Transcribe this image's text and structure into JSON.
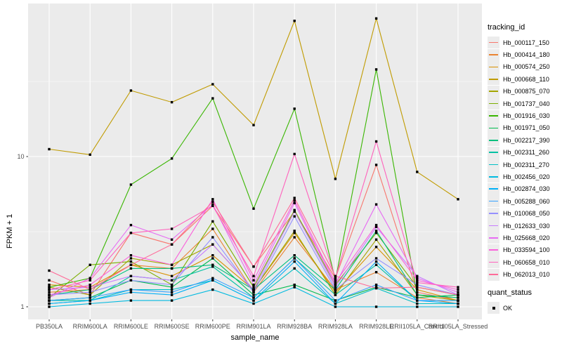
{
  "figure": {
    "background": "#ffffff",
    "panel_background": "#ebebeb",
    "grid_color": "#ffffff",
    "tick_color": "#333333",
    "tick_label_color": "#4d4d4d",
    "marker_color": "#000000"
  },
  "chart_data": {
    "type": "line",
    "xlabel": "sample_name",
    "ylabel": "FPKM + 1",
    "y_scale": "log10",
    "y_ticks": [
      1,
      10
    ],
    "y_minor_ticks": [
      3.162,
      31.62
    ],
    "ylim": [
      0.82,
      103
    ],
    "grid": true,
    "legend_position": "right",
    "marker": "filled-square",
    "categories": [
      "PB350LA",
      "RRIM600LA",
      "RRIM600LE",
      "RRIM600SE",
      "RRIM600PE",
      "RRIM901LA",
      "RRIM928BA",
      "RRIM928LA",
      "RRIM928LE",
      "RRII105LA_Control",
      "RRII105LA_Stressed"
    ],
    "series": [
      {
        "name": "Hb_000117_150",
        "color": "#F8766D",
        "values": [
          1.5,
          1.2,
          3.1,
          2.6,
          4.7,
          1.85,
          4.3,
          1.55,
          8.8,
          1.25,
          1.1
        ]
      },
      {
        "name": "Hb_000414_180",
        "color": "#EA8331",
        "values": [
          1.25,
          1.3,
          1.9,
          1.8,
          3.3,
          1.25,
          2.9,
          1.3,
          1.7,
          1.15,
          1.05
        ]
      },
      {
        "name": "Hb_000574_250",
        "color": "#D89000",
        "values": [
          1.4,
          1.35,
          1.9,
          1.6,
          2.2,
          1.3,
          3.1,
          1.25,
          2.5,
          1.3,
          1.1
        ]
      },
      {
        "name": "Hb_000668_110",
        "color": "#C09B00",
        "values": [
          11.2,
          10.3,
          27.5,
          23.0,
          30.3,
          16.2,
          80.0,
          7.1,
          83.0,
          7.9,
          5.2
        ]
      },
      {
        "name": "Hb_000875_070",
        "color": "#A3A500",
        "values": [
          1.35,
          1.2,
          2.1,
          1.9,
          2.6,
          1.3,
          3.2,
          1.2,
          2.8,
          1.2,
          1.1
        ]
      },
      {
        "name": "Hb_001737_040",
        "color": "#7CAE00",
        "values": [
          1.15,
          1.9,
          2.0,
          1.4,
          3.7,
          1.35,
          4.4,
          1.4,
          3.1,
          1.35,
          1.2
        ]
      },
      {
        "name": "Hb_001916_030",
        "color": "#39B600",
        "values": [
          1.35,
          1.55,
          6.5,
          9.7,
          24.4,
          4.5,
          20.8,
          1.5,
          38.0,
          1.2,
          1.15
        ]
      },
      {
        "name": "Hb_001971_050",
        "color": "#00BB4E",
        "values": [
          1.1,
          1.15,
          1.5,
          1.35,
          2.1,
          1.2,
          1.4,
          1.1,
          1.35,
          1.15,
          1.2
        ]
      },
      {
        "name": "Hb_002217_390",
        "color": "#00BF7D",
        "values": [
          1.2,
          1.3,
          1.8,
          1.8,
          1.9,
          1.3,
          2.2,
          1.3,
          3.2,
          1.2,
          1.15
        ]
      },
      {
        "name": "Hb_002311_260",
        "color": "#00C1A3",
        "values": [
          1.1,
          1.1,
          1.6,
          1.5,
          1.85,
          1.15,
          2.1,
          1.2,
          1.9,
          1.1,
          1.1
        ]
      },
      {
        "name": "Hb_002311_270",
        "color": "#00BFC4",
        "values": [
          1.05,
          1.1,
          1.3,
          1.3,
          1.5,
          1.1,
          1.8,
          1.05,
          1.33,
          1.05,
          1.05
        ]
      },
      {
        "name": "Hb_002456_020",
        "color": "#00BAE0",
        "values": [
          1.0,
          1.05,
          1.1,
          1.1,
          1.3,
          1.05,
          1.35,
          1.0,
          1.0,
          1.0,
          1.0
        ]
      },
      {
        "name": "Hb_002874_030",
        "color": "#00B0F6",
        "values": [
          1.05,
          1.1,
          1.25,
          1.2,
          1.5,
          1.1,
          2.0,
          1.05,
          2.0,
          1.1,
          1.05
        ]
      },
      {
        "name": "Hb_005288_060",
        "color": "#35A2FF",
        "values": [
          1.1,
          1.15,
          1.3,
          1.25,
          1.55,
          1.15,
          2.1,
          1.1,
          1.4,
          1.1,
          1.1
        ]
      },
      {
        "name": "Hb_010068_050",
        "color": "#9590FF",
        "values": [
          1.2,
          1.25,
          1.5,
          1.4,
          2.9,
          1.25,
          4.0,
          1.3,
          2.1,
          1.4,
          1.2
        ]
      },
      {
        "name": "Hb_012633_030",
        "color": "#C77CFF",
        "values": [
          1.3,
          1.35,
          1.6,
          1.5,
          2.6,
          1.3,
          4.3,
          1.35,
          3.4,
          1.6,
          1.2
        ]
      },
      {
        "name": "Hb_025668_020",
        "color": "#E76BF3",
        "values": [
          1.15,
          1.55,
          3.5,
          2.8,
          4.8,
          1.4,
          4.9,
          1.4,
          4.8,
          1.55,
          1.25
        ]
      },
      {
        "name": "Hb_033594_100",
        "color": "#FA62DB",
        "values": [
          1.2,
          1.4,
          2.2,
          1.9,
          5.2,
          1.5,
          5.1,
          1.45,
          3.5,
          1.5,
          1.3
        ]
      },
      {
        "name": "Hb_060658_010",
        "color": "#FF62BC",
        "values": [
          1.3,
          1.5,
          3.1,
          3.3,
          4.7,
          1.6,
          10.4,
          1.55,
          12.6,
          1.45,
          1.35
        ]
      },
      {
        "name": "Hb_062013_010",
        "color": "#FF6A98",
        "values": [
          1.74,
          1.3,
          1.9,
          2.6,
          5.0,
          1.85,
          5.3,
          1.6,
          1.33,
          1.35,
          1.2
        ]
      }
    ],
    "legend": {
      "tracking_title": "tracking_id",
      "quant_title": "quant_status",
      "quant_items": [
        {
          "label": "OK",
          "marker": "black-square"
        }
      ]
    }
  }
}
